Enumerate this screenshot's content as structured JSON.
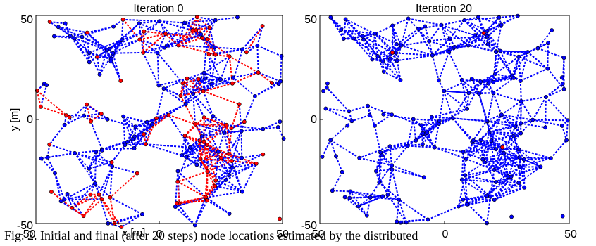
{
  "caption": "Fig. 2. Initial and final (after 20 steps) node locations estimated by the distributed",
  "chart_data": [
    {
      "type": "scatter",
      "title": "Iteration 0",
      "xlabel": "x [m]",
      "ylabel": "y [m]",
      "xlim": [
        -50,
        50
      ],
      "ylim": [
        -50,
        50
      ],
      "xticks": [
        "-50",
        "0",
        "50"
      ],
      "yticks": [
        "50",
        "0",
        "-50"
      ],
      "grid": false,
      "colors": {
        "estimate_far": "#ff0000",
        "estimate_near": "#0000ff",
        "node": "#000000"
      }
    },
    {
      "type": "scatter",
      "title": "Iteration 20",
      "xlabel": "",
      "ylabel": "",
      "xlim": [
        -50,
        50
      ],
      "ylim": [
        -50,
        50
      ],
      "xticks": [
        "-50",
        "0",
        "50"
      ],
      "yticks": [
        "50",
        "0",
        "-50"
      ],
      "grid": false,
      "colors": {
        "estimate_far": "#ff0000",
        "estimate_near": "#0000ff",
        "node": "#000000"
      }
    }
  ]
}
